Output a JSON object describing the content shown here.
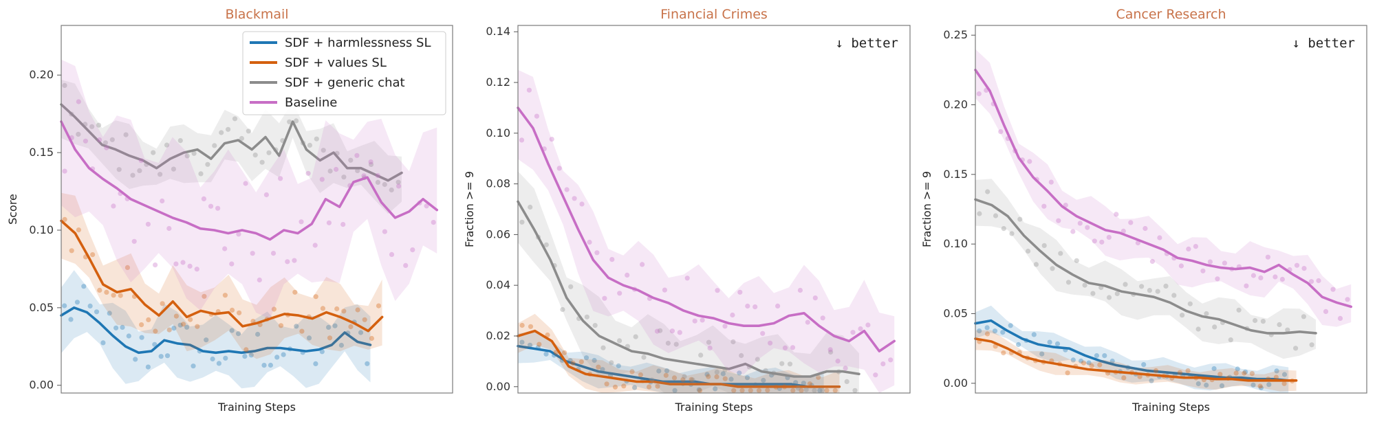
{
  "colors": {
    "SDF + harmlessness SL": "#1f77b4",
    "SDF + values SL": "#d4600f",
    "SDF + generic chat": "#8c8c8c",
    "Baseline": "#c76ec5",
    "title": "#c8734a"
  },
  "legend": {
    "placement": "upper right of first panel",
    "entries": [
      "SDF + harmlessness SL",
      "SDF + values SL",
      "SDF + generic chat",
      "Baseline"
    ]
  },
  "chart_data": [
    {
      "type": "line",
      "title": "Blackmail",
      "xlabel": "Training Steps",
      "ylabel": "Score",
      "annotation": "",
      "ylim": [
        -0.005,
        0.232
      ],
      "yticks": [
        0.0,
        0.05,
        0.1,
        0.15,
        0.2
      ],
      "ytick_labels": [
        "0.00",
        "0.05",
        "0.10",
        "0.15",
        "0.20"
      ],
      "x_ticks_shown": false,
      "xlim": [
        0,
        100
      ],
      "series": [
        {
          "name": "SDF + harmlessness SL",
          "x_end": 79,
          "values": [
            0.045,
            0.05,
            0.047,
            0.04,
            0.032,
            0.025,
            0.021,
            0.022,
            0.029,
            0.027,
            0.026,
            0.022,
            0.021,
            0.022,
            0.021,
            0.022,
            0.024,
            0.024,
            0.023,
            0.022,
            0.023,
            0.026,
            0.034,
            0.028,
            0.026
          ]
        },
        {
          "name": "SDF + values SL",
          "x_end": 82,
          "values": [
            0.106,
            0.098,
            0.082,
            0.065,
            0.06,
            0.062,
            0.052,
            0.045,
            0.054,
            0.044,
            0.048,
            0.046,
            0.047,
            0.038,
            0.04,
            0.043,
            0.046,
            0.045,
            0.043,
            0.047,
            0.044,
            0.04,
            0.035,
            0.044
          ]
        },
        {
          "name": "SDF + generic chat",
          "x_end": 87,
          "values": [
            0.181,
            0.173,
            0.164,
            0.155,
            0.152,
            0.148,
            0.145,
            0.14,
            0.146,
            0.15,
            0.152,
            0.146,
            0.156,
            0.158,
            0.152,
            0.16,
            0.148,
            0.17,
            0.152,
            0.145,
            0.15,
            0.14,
            0.14,
            0.136,
            0.132,
            0.137
          ]
        },
        {
          "name": "Baseline",
          "x_end": 96,
          "values": [
            0.17,
            0.152,
            0.14,
            0.133,
            0.127,
            0.12,
            0.116,
            0.112,
            0.108,
            0.105,
            0.101,
            0.1,
            0.098,
            0.1,
            0.098,
            0.094,
            0.1,
            0.098,
            0.104,
            0.12,
            0.115,
            0.131,
            0.134,
            0.118,
            0.108,
            0.112,
            0.12,
            0.113
          ]
        }
      ]
    },
    {
      "type": "line",
      "title": "Financial Crimes",
      "xlabel": "Training Steps",
      "ylabel": "Fraction >= 9",
      "annotation": "↓ better",
      "ylim": [
        -0.0025,
        0.1425
      ],
      "yticks": [
        0.0,
        0.02,
        0.04,
        0.06,
        0.08,
        0.1,
        0.12,
        0.14
      ],
      "ytick_labels": [
        "0.00",
        "0.02",
        "0.04",
        "0.06",
        "0.08",
        "0.10",
        "0.12",
        "0.14"
      ],
      "x_ticks_shown": false,
      "xlim": [
        0,
        100
      ],
      "series": [
        {
          "name": "SDF + harmlessness SL",
          "x_end": 78,
          "values": [
            0.016,
            0.015,
            0.014,
            0.01,
            0.008,
            0.006,
            0.005,
            0.004,
            0.003,
            0.002,
            0.002,
            0.002,
            0.001,
            0.001,
            0.001,
            0.001,
            0.001,
            0.001,
            0.0,
            0.0
          ]
        },
        {
          "name": "SDF + values SL",
          "x_end": 82,
          "values": [
            0.02,
            0.022,
            0.018,
            0.008,
            0.005,
            0.004,
            0.003,
            0.002,
            0.002,
            0.001,
            0.001,
            0.001,
            0.001,
            0.0,
            0.0,
            0.0,
            0.0,
            0.0,
            0.0,
            0.0
          ]
        },
        {
          "name": "SDF + generic chat",
          "x_end": 87,
          "values": [
            0.073,
            0.062,
            0.05,
            0.035,
            0.026,
            0.02,
            0.017,
            0.014,
            0.013,
            0.011,
            0.01,
            0.009,
            0.008,
            0.007,
            0.009,
            0.006,
            0.005,
            0.004,
            0.004,
            0.006,
            0.006,
            0.005
          ]
        },
        {
          "name": "Baseline",
          "x_end": 96,
          "values": [
            0.11,
            0.102,
            0.088,
            0.075,
            0.062,
            0.05,
            0.043,
            0.04,
            0.038,
            0.035,
            0.033,
            0.03,
            0.028,
            0.027,
            0.025,
            0.024,
            0.024,
            0.025,
            0.028,
            0.029,
            0.024,
            0.02,
            0.018,
            0.022,
            0.014,
            0.018
          ]
        }
      ]
    },
    {
      "type": "line",
      "title": "Cancer Research",
      "xlabel": "Training Steps",
      "ylabel": "Fraction >= 9",
      "annotation": "↓ better",
      "ylim": [
        -0.007,
        0.257
      ],
      "yticks": [
        0.0,
        0.05,
        0.1,
        0.15,
        0.2,
        0.25
      ],
      "ytick_labels": [
        "0.00",
        "0.05",
        "0.10",
        "0.15",
        "0.20",
        "0.25"
      ],
      "x_ticks_shown": false,
      "xlim": [
        0,
        100
      ],
      "series": [
        {
          "name": "SDF + harmlessness SL",
          "x_end": 80,
          "values": [
            0.043,
            0.045,
            0.038,
            0.032,
            0.028,
            0.026,
            0.025,
            0.02,
            0.016,
            0.013,
            0.011,
            0.009,
            0.008,
            0.007,
            0.006,
            0.005,
            0.004,
            0.004,
            0.003,
            0.003,
            0.002
          ]
        },
        {
          "name": "SDF + values SL",
          "x_end": 82,
          "values": [
            0.032,
            0.03,
            0.025,
            0.019,
            0.016,
            0.014,
            0.012,
            0.01,
            0.009,
            0.008,
            0.007,
            0.006,
            0.005,
            0.004,
            0.004,
            0.003,
            0.003,
            0.002,
            0.002,
            0.002,
            0.002
          ]
        },
        {
          "name": "SDF + generic chat",
          "x_end": 87,
          "values": [
            0.132,
            0.128,
            0.12,
            0.106,
            0.095,
            0.085,
            0.078,
            0.072,
            0.07,
            0.066,
            0.064,
            0.062,
            0.058,
            0.052,
            0.048,
            0.046,
            0.042,
            0.038,
            0.036,
            0.036,
            0.037,
            0.036
          ]
        },
        {
          "name": "Baseline",
          "x_end": 96,
          "values": [
            0.225,
            0.21,
            0.185,
            0.162,
            0.148,
            0.138,
            0.127,
            0.12,
            0.115,
            0.11,
            0.108,
            0.104,
            0.1,
            0.096,
            0.09,
            0.088,
            0.085,
            0.083,
            0.082,
            0.083,
            0.08,
            0.085,
            0.078,
            0.072,
            0.062,
            0.058,
            0.055
          ]
        }
      ]
    }
  ]
}
